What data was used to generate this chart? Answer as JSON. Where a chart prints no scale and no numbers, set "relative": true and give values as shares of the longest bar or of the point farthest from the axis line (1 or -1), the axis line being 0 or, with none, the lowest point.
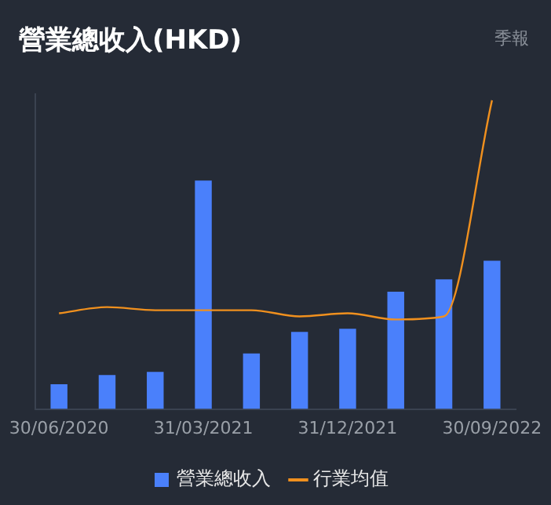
{
  "chart_data": {
    "type": "bar",
    "title": "營業總收入(HKD)",
    "annotations": [
      "季報"
    ],
    "relative": true,
    "categories": [
      "30/06/2020",
      null,
      null,
      "31/03/2021",
      null,
      null,
      "31/12/2021",
      null,
      null,
      "30/09/2022"
    ],
    "series": [
      {
        "name": "營業總收入",
        "color": "#4a80fb",
        "values": [
          0.08,
          0.11,
          0.12,
          0.74,
          0.18,
          0.25,
          0.26,
          0.38,
          0.42,
          0.48
        ]
      },
      {
        "name": "行業均值",
        "type": "line",
        "color": "#f0901e",
        "values": [
          0.31,
          0.33,
          0.32,
          0.32,
          0.32,
          0.3,
          0.31,
          0.29,
          0.3,
          1
        ]
      }
    ],
    "grid": false,
    "legend": "bottom",
    "marker": "none"
  }
}
